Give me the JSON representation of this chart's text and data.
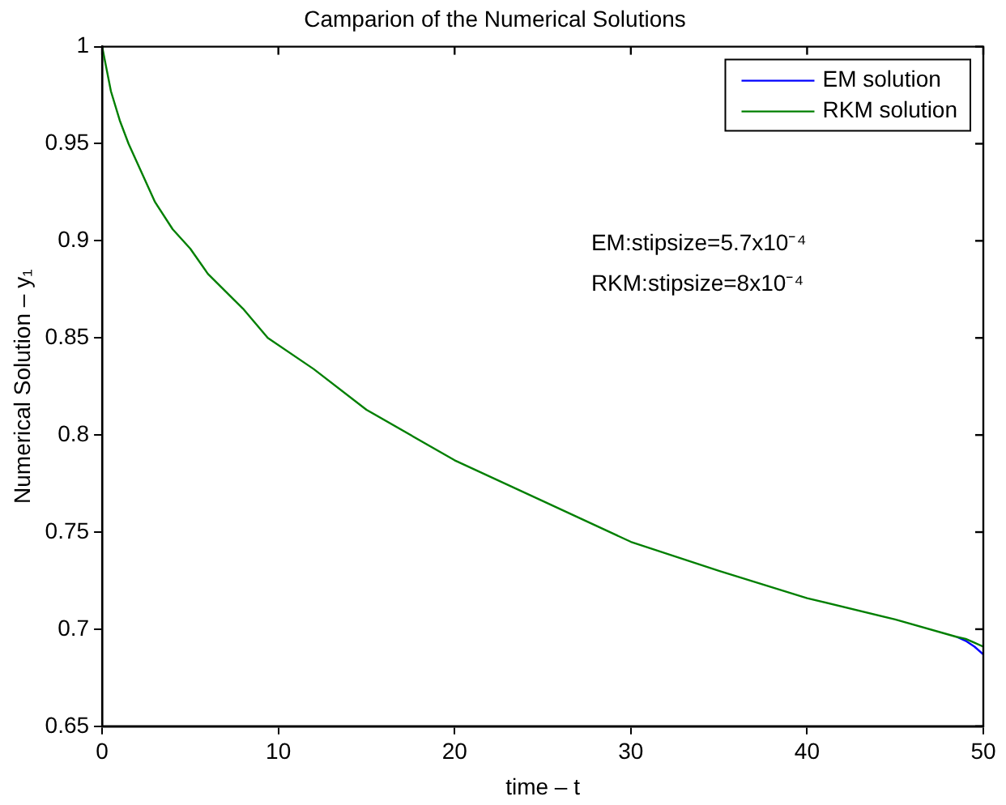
{
  "chart_data": {
    "type": "line",
    "title": "Camparion of the Numerical Solutions",
    "xlabel": "time – t",
    "ylabel": "Numerical Solution – y₁",
    "x": [
      0,
      0.5,
      1,
      1.5,
      2,
      3,
      4,
      5,
      6,
      8,
      9.4,
      12,
      15,
      20,
      25,
      30,
      35,
      40,
      45,
      48.5,
      49,
      49.5,
      50
    ],
    "series": [
      {
        "name": "EM solution",
        "color": "#0000ff",
        "values": [
          null,
          null,
          null,
          null,
          null,
          null,
          null,
          null,
          null,
          null,
          null,
          null,
          null,
          null,
          null,
          null,
          null,
          null,
          null,
          0.696,
          0.694,
          0.691,
          0.687
        ]
      },
      {
        "name": "RKM solution",
        "color": "#007f00",
        "values": [
          1,
          0.977,
          0.962,
          0.95,
          0.94,
          0.92,
          0.906,
          0.896,
          0.883,
          0.865,
          0.85,
          0.834,
          0.813,
          0.787,
          0.766,
          0.745,
          0.73,
          0.716,
          0.705,
          0.696,
          0.695,
          0.693,
          0.691
        ]
      }
    ],
    "xlim": [
      0,
      50
    ],
    "xticks": [
      0,
      10,
      20,
      30,
      40,
      50
    ],
    "ylim": [
      0.65,
      1
    ],
    "yticks": [
      0.65,
      0.7,
      0.75,
      0.8,
      0.85,
      0.9,
      0.95,
      1
    ],
    "grid": false,
    "legend": "top right",
    "marker": "none",
    "line_style": "solid",
    "annotations": [
      "EM:stipsize=5.7x10⁻⁴",
      "RKM:stipsize=8x10⁻⁴"
    ]
  }
}
